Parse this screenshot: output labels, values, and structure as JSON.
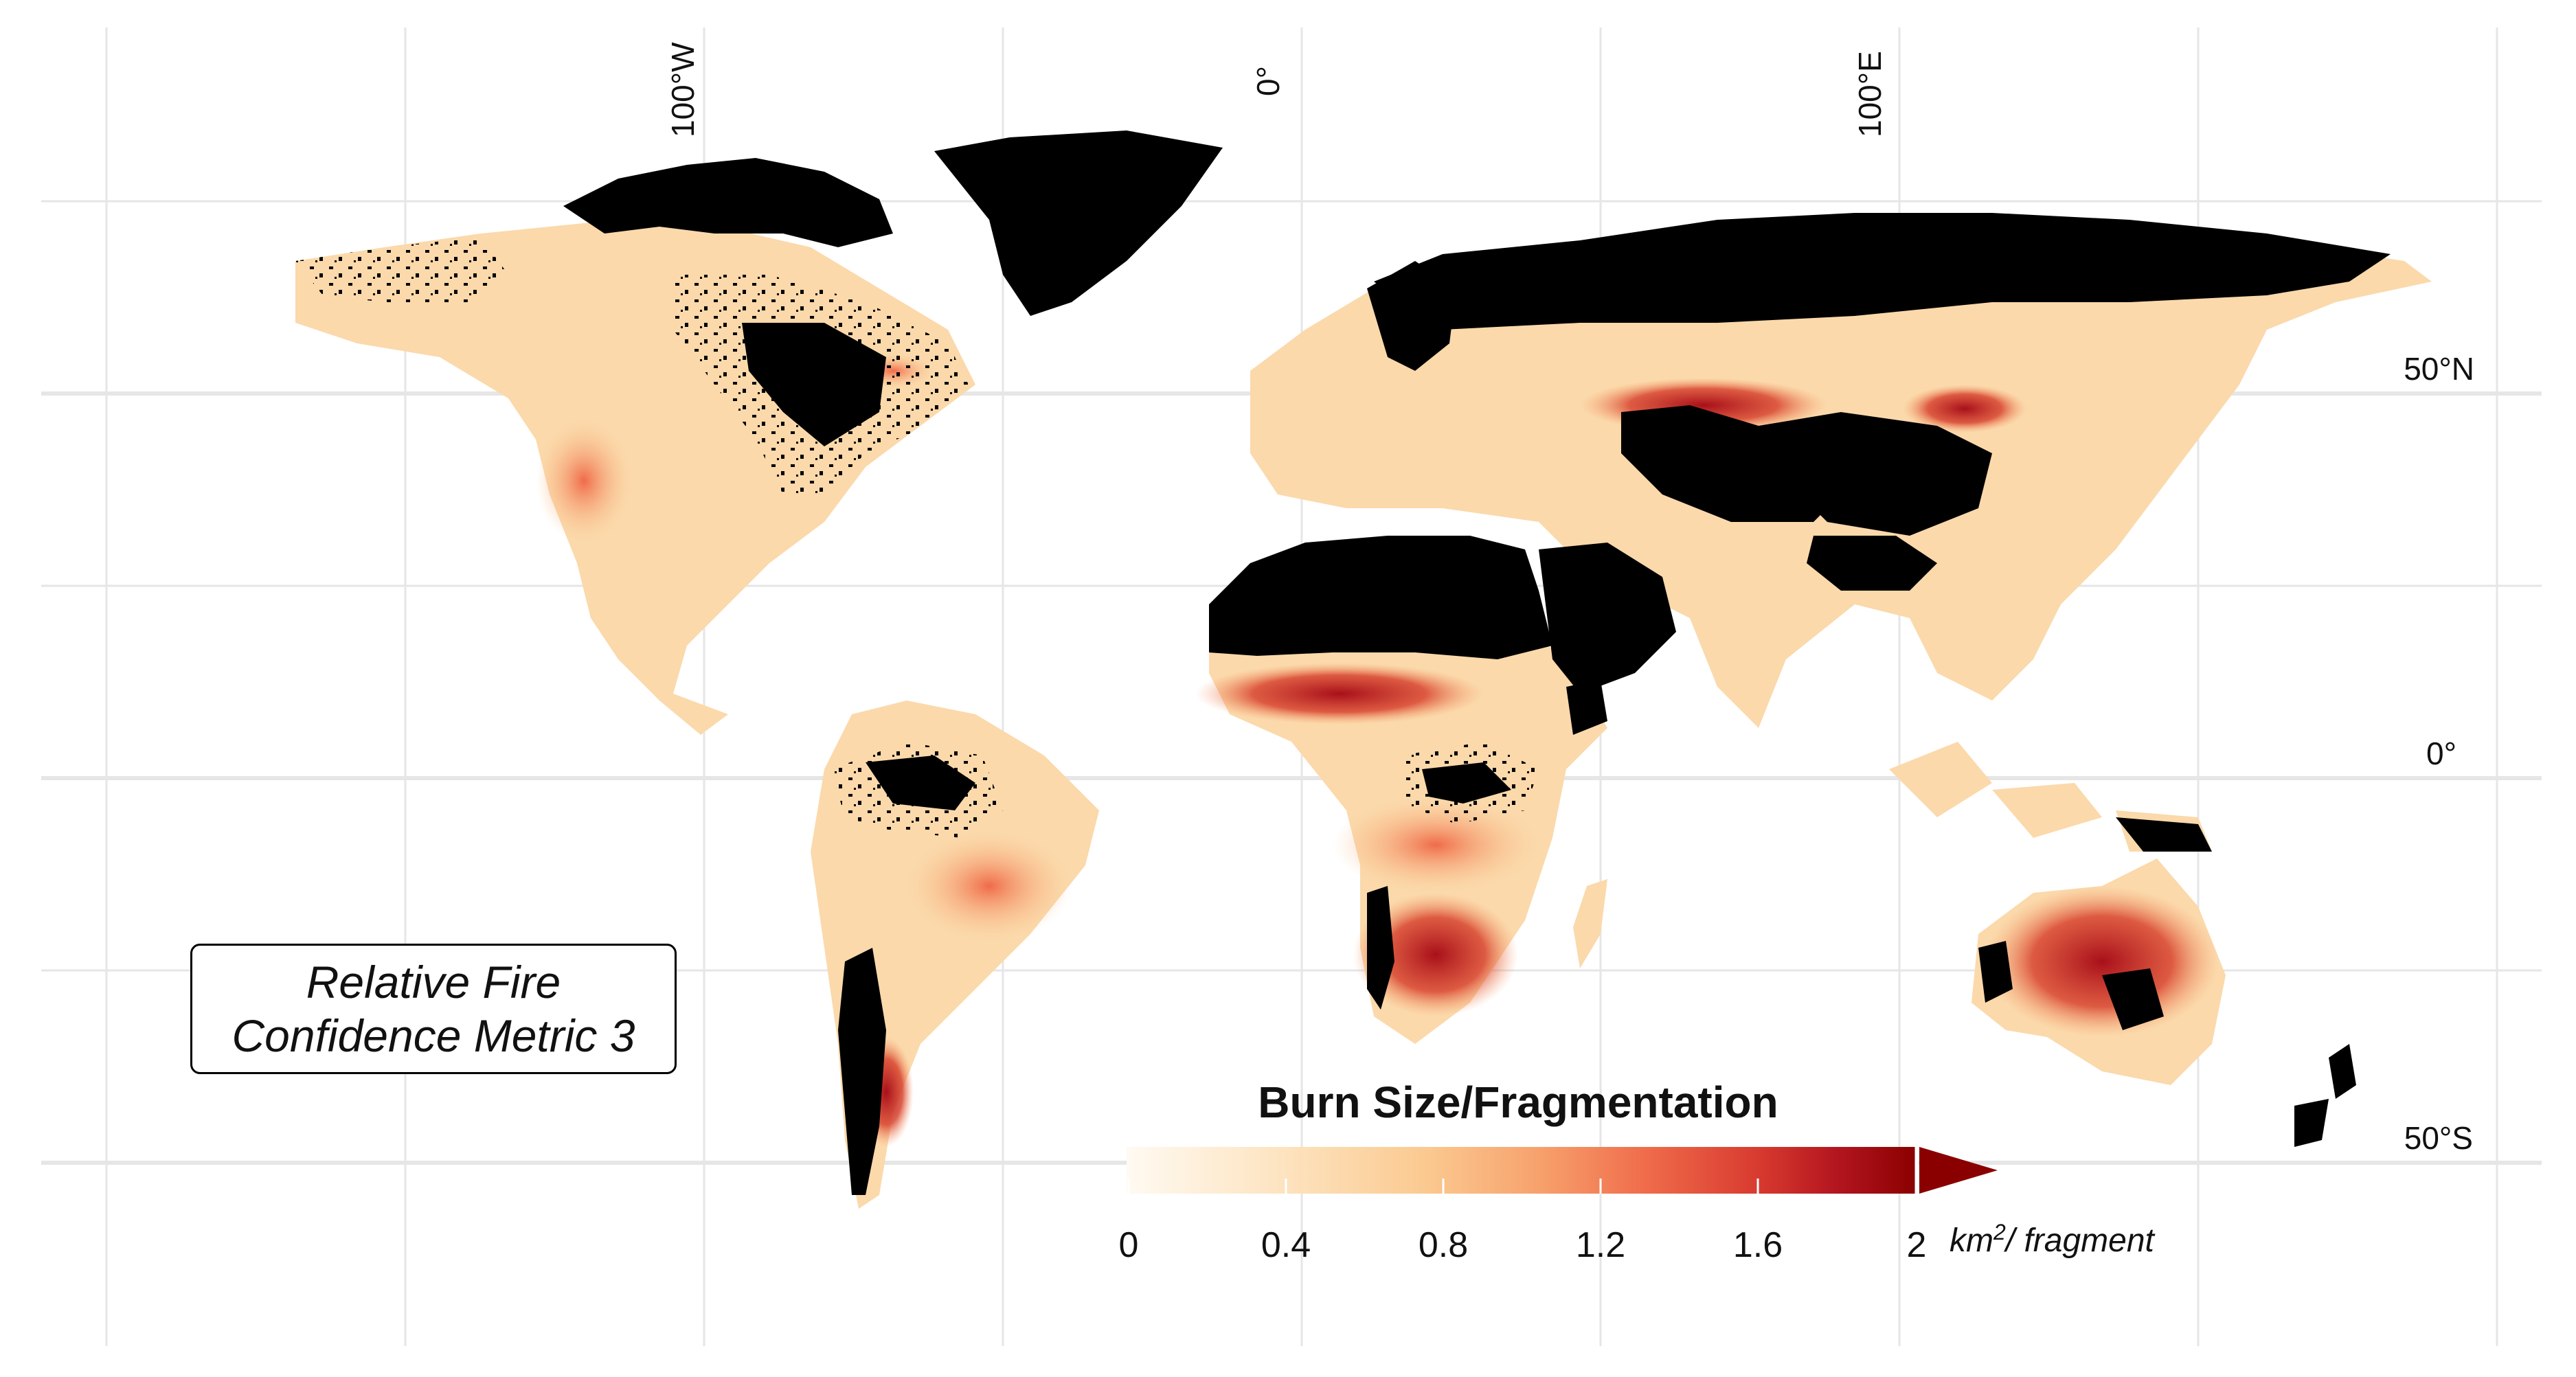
{
  "map": {
    "lon_labels": [
      "100°W",
      "0°",
      "100°E"
    ],
    "lat_labels": [
      "50°N",
      "0°",
      "50°S"
    ],
    "annotation": {
      "line1": "Relative Fire",
      "line2": "Confidence Metric 3"
    },
    "land_no_data_color": "#000000",
    "ocean_color": "#ffffff",
    "grid_color": "#e6e6e6"
  },
  "legend": {
    "title": "Burn Size/Fragmentation",
    "ticks": [
      "0",
      "0.4",
      "0.8",
      "1.2",
      "1.6",
      "2"
    ],
    "unit_base": "km",
    "unit_sup": "2",
    "unit_rest": "/ fragment",
    "range": [
      0,
      2
    ],
    "extends_above_max": true,
    "colors": [
      "#fffaf2",
      "#fde3bf",
      "#fcc68c",
      "#f7a26d",
      "#ef6b4a",
      "#d83a2f",
      "#b3151f",
      "#8a0000"
    ]
  }
}
